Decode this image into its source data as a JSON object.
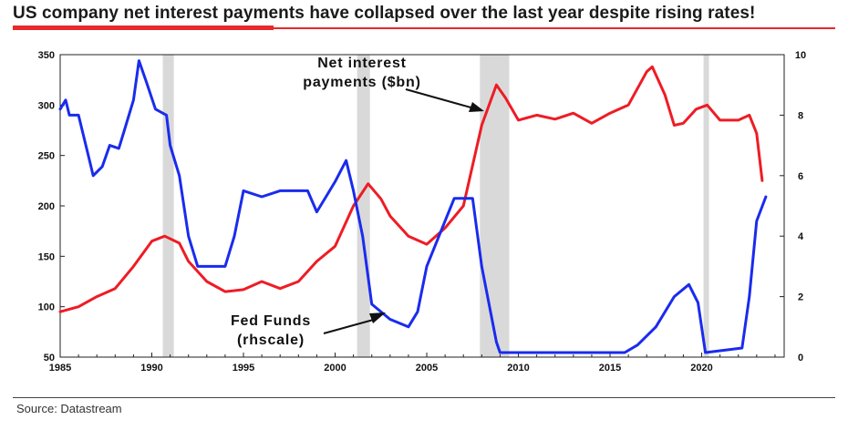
{
  "title": "US company net interest payments have collapsed over the last year despite rising rates!",
  "source": "Source: Datastream",
  "colors": {
    "net_interest": "#ee1c25",
    "fed_funds": "#1a2bee",
    "recession": "#d9d9d9",
    "accent": "#e8282b"
  },
  "chart_data": {
    "type": "line",
    "title": "US company net interest payments have collapsed over the last year despite rising rates!",
    "xlim": [
      1985,
      2024.5
    ],
    "ylim_left": [
      50,
      350
    ],
    "ylim_right": [
      0,
      10
    ],
    "x_ticks": [
      "1985",
      "1990",
      "1995",
      "2000",
      "2005",
      "2010",
      "2015",
      "2020"
    ],
    "y_left_ticks": [
      "50",
      "100",
      "150",
      "200",
      "250",
      "300",
      "350"
    ],
    "y_right_ticks": [
      "0",
      "2",
      "4",
      "6",
      "8",
      "10"
    ],
    "recessions": [
      [
        1990.6,
        1991.2
      ],
      [
        2001.2,
        2001.9
      ],
      [
        2007.9,
        2009.5
      ],
      [
        2020.1,
        2020.4
      ]
    ],
    "annotations": [
      {
        "text": [
          "Net interest",
          "payments ($bn)"
        ],
        "points_to": "net_interest"
      },
      {
        "text": [
          "Fed Funds",
          "(rhscale)"
        ],
        "points_to": "fed_funds"
      }
    ],
    "series": [
      {
        "key": "net_interest",
        "axis": "left",
        "points": [
          [
            1985,
            95
          ],
          [
            1986,
            100
          ],
          [
            1987,
            110
          ],
          [
            1988,
            118
          ],
          [
            1989,
            140
          ],
          [
            1990,
            165
          ],
          [
            1990.7,
            170
          ],
          [
            1991.5,
            163
          ],
          [
            1992,
            145
          ],
          [
            1993,
            125
          ],
          [
            1994,
            115
          ],
          [
            1995,
            117
          ],
          [
            1996,
            125
          ],
          [
            1997,
            118
          ],
          [
            1998,
            125
          ],
          [
            1999,
            145
          ],
          [
            2000,
            160
          ],
          [
            2001,
            200
          ],
          [
            2001.8,
            222
          ],
          [
            2002.5,
            207
          ],
          [
            2003,
            190
          ],
          [
            2004,
            170
          ],
          [
            2005,
            162
          ],
          [
            2006,
            178
          ],
          [
            2007,
            200
          ],
          [
            2008,
            280
          ],
          [
            2008.8,
            320
          ],
          [
            2009.3,
            307
          ],
          [
            2010,
            285
          ],
          [
            2011,
            290
          ],
          [
            2012,
            286
          ],
          [
            2013,
            292
          ],
          [
            2014,
            282
          ],
          [
            2015,
            292
          ],
          [
            2016,
            300
          ],
          [
            2017,
            333
          ],
          [
            2017.3,
            338
          ],
          [
            2018,
            310
          ],
          [
            2018.5,
            280
          ],
          [
            2019,
            282
          ],
          [
            2019.7,
            296
          ],
          [
            2020.3,
            300
          ],
          [
            2021,
            285
          ],
          [
            2022,
            285
          ],
          [
            2022.6,
            290
          ],
          [
            2023,
            272
          ],
          [
            2023.3,
            225
          ]
        ]
      },
      {
        "key": "fed_funds",
        "axis": "right",
        "points": [
          [
            1985,
            8.2
          ],
          [
            1985.3,
            8.5
          ],
          [
            1985.5,
            8.0
          ],
          [
            1986,
            8.0
          ],
          [
            1986.6,
            6.5
          ],
          [
            1986.8,
            6.0
          ],
          [
            1987.3,
            6.3
          ],
          [
            1987.7,
            7.0
          ],
          [
            1988.2,
            6.9
          ],
          [
            1988.5,
            7.5
          ],
          [
            1989,
            8.5
          ],
          [
            1989.3,
            9.8
          ],
          [
            1989.7,
            9.1
          ],
          [
            1990.2,
            8.2
          ],
          [
            1990.8,
            8.0
          ],
          [
            1991,
            7.0
          ],
          [
            1991.5,
            6.0
          ],
          [
            1992,
            4.0
          ],
          [
            1992.5,
            3.0
          ],
          [
            1993,
            3.0
          ],
          [
            1994,
            3.0
          ],
          [
            1994.5,
            4.0
          ],
          [
            1995,
            5.5
          ],
          [
            1996,
            5.3
          ],
          [
            1997,
            5.5
          ],
          [
            1998.5,
            5.5
          ],
          [
            1999,
            4.8
          ],
          [
            1999.5,
            5.3
          ],
          [
            2000,
            5.8
          ],
          [
            2000.6,
            6.5
          ],
          [
            2001,
            5.5
          ],
          [
            2001.5,
            4.0
          ],
          [
            2002,
            1.75
          ],
          [
            2003,
            1.25
          ],
          [
            2004,
            1.0
          ],
          [
            2004.5,
            1.5
          ],
          [
            2005,
            3.0
          ],
          [
            2006,
            4.5
          ],
          [
            2006.5,
            5.25
          ],
          [
            2007.5,
            5.25
          ],
          [
            2008,
            3.0
          ],
          [
            2008.8,
            0.5
          ],
          [
            2009,
            0.15
          ],
          [
            2015.8,
            0.15
          ],
          [
            2016.5,
            0.4
          ],
          [
            2017.5,
            1.0
          ],
          [
            2018.5,
            2.0
          ],
          [
            2019.3,
            2.4
          ],
          [
            2019.8,
            1.8
          ],
          [
            2020.2,
            0.15
          ],
          [
            2022.2,
            0.3
          ],
          [
            2022.6,
            2.0
          ],
          [
            2023,
            4.5
          ],
          [
            2023.5,
            5.3
          ]
        ]
      }
    ]
  }
}
